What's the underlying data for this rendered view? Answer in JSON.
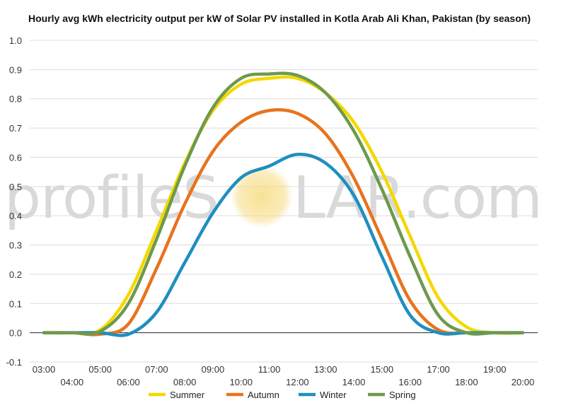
{
  "chart_data": {
    "type": "line",
    "title": "Hourly avg kWh electricity output per kW of Solar PV installed in Kotla Arab Ali Khan, Pakistan (by season)",
    "xlabel": "",
    "ylabel": "",
    "ylim": [
      -0.1,
      1.0
    ],
    "yticks": [
      "-0.1",
      "0.0",
      "0.1",
      "0.2",
      "0.3",
      "0.4",
      "0.5",
      "0.6",
      "0.7",
      "0.8",
      "0.9",
      "1.0"
    ],
    "x": [
      "03:00",
      "04:00",
      "05:00",
      "06:00",
      "07:00",
      "08:00",
      "09:00",
      "10:00",
      "11:00",
      "12:00",
      "13:00",
      "14:00",
      "15:00",
      "16:00",
      "17:00",
      "18:00",
      "19:00",
      "20:00"
    ],
    "grid": true,
    "legend": "bottom",
    "series": [
      {
        "name": "Summer",
        "color": "#f5d800",
        "values": [
          0.0,
          0.0,
          0.01,
          0.13,
          0.35,
          0.58,
          0.76,
          0.85,
          0.87,
          0.87,
          0.82,
          0.72,
          0.55,
          0.33,
          0.12,
          0.02,
          0.0,
          0.0
        ]
      },
      {
        "name": "Autumn",
        "color": "#e8731e",
        "values": [
          0.0,
          0.0,
          -0.005,
          0.03,
          0.22,
          0.44,
          0.62,
          0.72,
          0.76,
          0.75,
          0.68,
          0.53,
          0.32,
          0.11,
          0.01,
          0.0,
          0.0,
          0.0
        ]
      },
      {
        "name": "Winter",
        "color": "#1e8fc0",
        "values": [
          0.0,
          0.0,
          0.0,
          -0.005,
          0.07,
          0.24,
          0.41,
          0.53,
          0.57,
          0.61,
          0.58,
          0.47,
          0.26,
          0.06,
          0.0,
          0.0,
          0.0,
          0.0
        ]
      },
      {
        "name": "Spring",
        "color": "#6d9a4d",
        "values": [
          0.0,
          0.0,
          0.005,
          0.1,
          0.32,
          0.57,
          0.77,
          0.87,
          0.885,
          0.88,
          0.82,
          0.69,
          0.49,
          0.26,
          0.06,
          0.0,
          0.0,
          0.0
        ]
      }
    ]
  },
  "watermark": {
    "part1": "profileS",
    "part2": "LAR.com",
    "sun_color": "#f7dc83"
  }
}
